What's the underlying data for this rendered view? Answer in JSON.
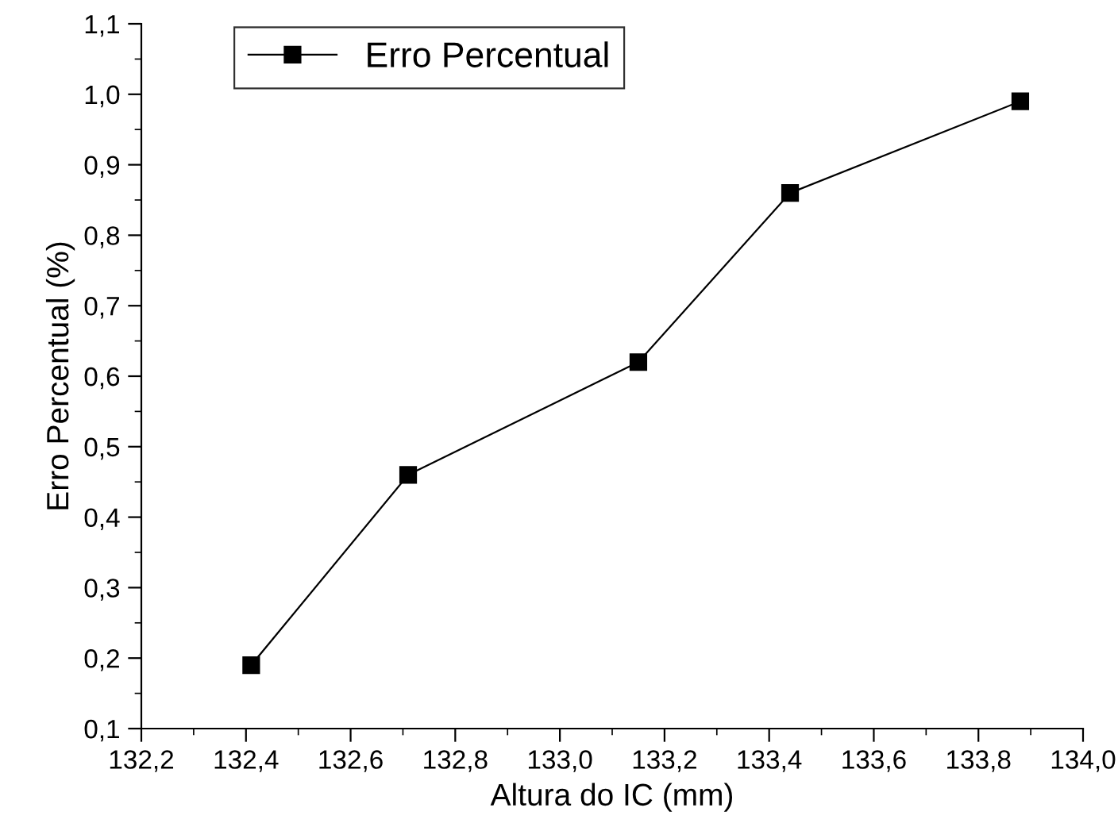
{
  "chart_data": {
    "type": "line",
    "xlabel": "Altura do IC (mm)",
    "ylabel": "Erro Percentual (%)",
    "x": [
      132.41,
      132.71,
      133.15,
      133.44,
      133.88
    ],
    "series": [
      {
        "name": "Erro Percentual",
        "color": "#000000",
        "values": [
          0.19,
          0.46,
          0.62,
          0.86,
          0.99
        ]
      }
    ],
    "xlim": [
      132.2,
      134.0
    ],
    "xticks": [
      {
        "value": 132.2,
        "label": "132,2"
      },
      {
        "value": 132.4,
        "label": "132,4"
      },
      {
        "value": 132.6,
        "label": "132,6"
      },
      {
        "value": 132.8,
        "label": "132,8"
      },
      {
        "value": 133.0,
        "label": "133,0"
      },
      {
        "value": 133.2,
        "label": "133,2"
      },
      {
        "value": 133.4,
        "label": "133,4"
      },
      {
        "value": 133.6,
        "label": "133,6"
      },
      {
        "value": 133.8,
        "label": "133,8"
      },
      {
        "value": 134.0,
        "label": "134,0"
      }
    ],
    "ylim": [
      0.1,
      1.1
    ],
    "yticks": [
      {
        "value": 0.1,
        "label": "0,1"
      },
      {
        "value": 0.2,
        "label": "0,2"
      },
      {
        "value": 0.3,
        "label": "0,3"
      },
      {
        "value": 0.4,
        "label": "0,4"
      },
      {
        "value": 0.5,
        "label": "0,5"
      },
      {
        "value": 0.6,
        "label": "0,6"
      },
      {
        "value": 0.7,
        "label": "0,7"
      },
      {
        "value": 0.8,
        "label": "0,8"
      },
      {
        "value": 0.9,
        "label": "0,9"
      },
      {
        "value": 1.0,
        "label": "1,0"
      },
      {
        "value": 1.1,
        "label": "1,1"
      }
    ],
    "grid": false,
    "legend": "top left",
    "marker": "square",
    "line_style": "solid"
  }
}
